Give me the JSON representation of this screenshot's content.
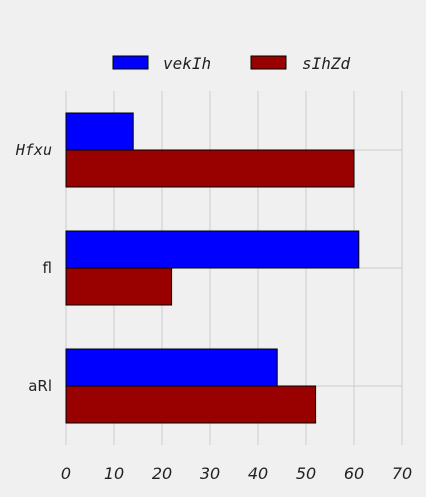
{
  "chart_data": {
    "type": "bar",
    "orientation": "horizontal",
    "title": "",
    "xlabel": "",
    "ylabel": "",
    "categories": [
      "Hfxu",
      "fl",
      "aRl"
    ],
    "series": [
      {
        "name": "vekIh",
        "color": "#0000ff",
        "values": [
          14,
          61,
          44
        ]
      },
      {
        "name": "sIhZd",
        "color": "#990000",
        "values": [
          60,
          22,
          52
        ]
      }
    ],
    "xlim": [
      0,
      70
    ],
    "xticks": [
      0,
      10,
      20,
      30,
      40,
      50,
      60,
      70
    ],
    "grid": true,
    "legend": "top-center"
  }
}
